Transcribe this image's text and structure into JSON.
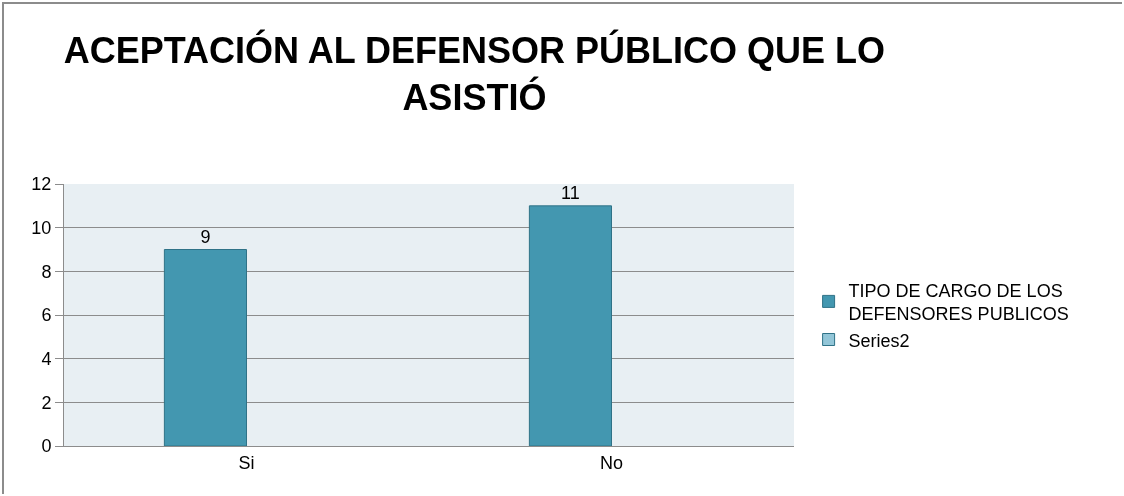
{
  "chart_data": {
    "type": "bar",
    "title": "ACEPTACIÓN AL DEFENSOR PÚBLICO QUE LO ASISTIÓ",
    "categories": [
      "Si",
      "No"
    ],
    "series": [
      {
        "name": "TIPO DE CARGO DE LOS DEFENSORES PUBLICOS",
        "color": "#4397b0",
        "values": [
          9,
          11
        ]
      },
      {
        "name": "Series2",
        "color": "#93c6d8",
        "values": [
          null,
          null
        ]
      }
    ],
    "ylim": [
      0,
      12
    ],
    "yticks": [
      0,
      2,
      4,
      6,
      8,
      10,
      12
    ],
    "grid": "y",
    "legend": "right",
    "data_labels": true
  }
}
